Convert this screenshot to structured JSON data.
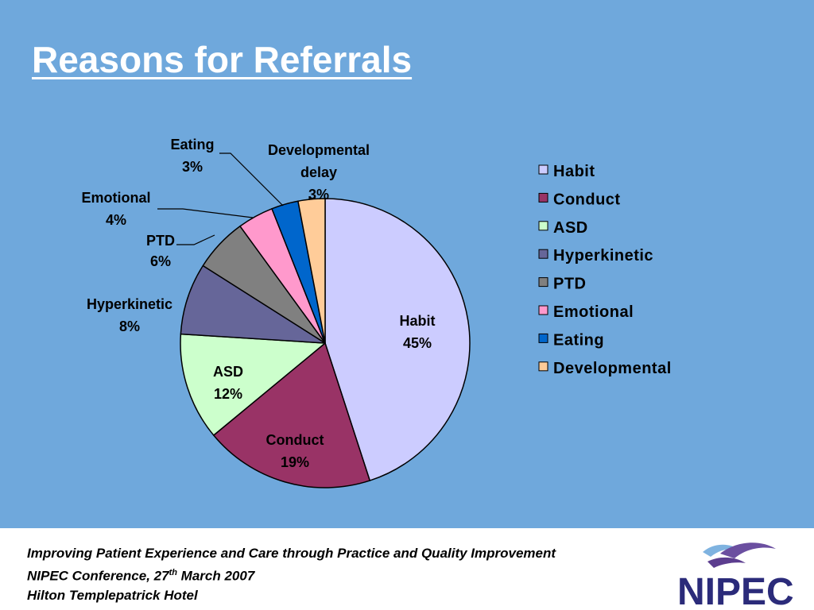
{
  "title": "Reasons for Referrals",
  "chart_data": {
    "type": "pie",
    "slices": [
      {
        "name": "Habit",
        "value": 45,
        "label_lines": [
          "Habit",
          "45%"
        ],
        "color": "#ccccff"
      },
      {
        "name": "Conduct",
        "value": 19,
        "label_lines": [
          "Conduct",
          "19%"
        ],
        "color": "#993366"
      },
      {
        "name": "ASD",
        "value": 12,
        "label_lines": [
          "ASD",
          "12%"
        ],
        "color": "#ccffcc"
      },
      {
        "name": "Hyperkinetic",
        "value": 8,
        "label_lines": [
          "Hyperkinetic",
          "8%"
        ],
        "color": "#666699"
      },
      {
        "name": "PTD",
        "value": 6,
        "label_lines": [
          "PTD",
          "6%"
        ],
        "color": "#808080"
      },
      {
        "name": "Emotional",
        "value": 4,
        "label_lines": [
          "Emotional",
          "4%"
        ],
        "color": "#ff99cc"
      },
      {
        "name": "Eating",
        "value": 3,
        "label_lines": [
          "Eating",
          "3%"
        ],
        "color": "#0066cc"
      },
      {
        "name": "Developmental",
        "value": 3,
        "label_lines": [
          "Developmental",
          "delay",
          "3%"
        ],
        "color": "#ffcc99"
      }
    ],
    "legend": [
      "Habit",
      "Conduct",
      "ASD",
      "Hyperkinetic",
      "PTD",
      "Emotional",
      "Eating",
      "Developmental"
    ],
    "legend_position": "right",
    "start": "12 o'clock",
    "direction": "clockwise"
  },
  "footer": {
    "line1": "Improving Patient Experience and Care through Practice and Quality Improvement",
    "line2_prefix": "NIPEC Conference, 27",
    "line2_sup": "th",
    "line2_suffix": " March 2007",
    "line3": "Hilton Templepatrick Hotel"
  },
  "logo": {
    "text": "NIPEC",
    "icon": "nipec-wave-logo-icon"
  }
}
